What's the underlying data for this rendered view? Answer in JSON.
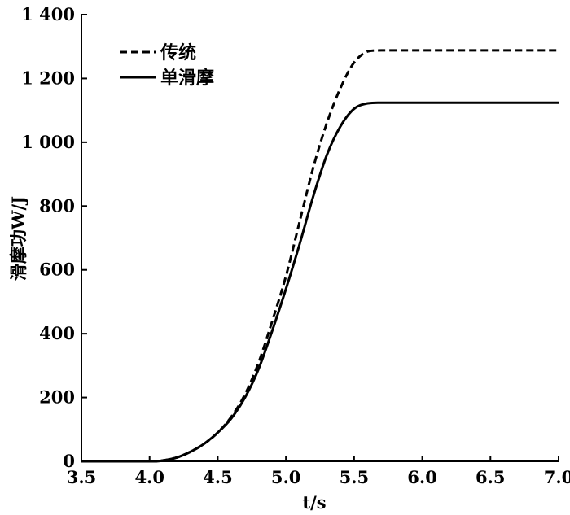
{
  "chart_data": {
    "type": "line",
    "xlabel": "t/s",
    "ylabel": "滑摩功W/J",
    "xlim": [
      3.5,
      7.0
    ],
    "ylim": [
      0,
      1400
    ],
    "xticks": [
      "3.5",
      "4.0",
      "4.5",
      "5.0",
      "5.5",
      "6.0",
      "6.5",
      "7.0"
    ],
    "yticks": [
      "0",
      "200",
      "400",
      "600",
      "800",
      "1 000",
      "1 200",
      "1 400"
    ],
    "legend_position": "top-left",
    "grid": false,
    "series": [
      {
        "name": "传统",
        "style": "dashed",
        "color": "#000000",
        "x": [
          3.5,
          4.0,
          4.1,
          4.2,
          4.3,
          4.4,
          4.5,
          4.6,
          4.7,
          4.8,
          4.9,
          5.0,
          5.1,
          5.2,
          5.3,
          5.4,
          5.5,
          5.6,
          5.7,
          6.0,
          6.5,
          7.0
        ],
        "y": [
          0,
          0,
          3,
          12,
          30,
          55,
          90,
          140,
          210,
          310,
          440,
          580,
          750,
          920,
          1060,
          1170,
          1250,
          1285,
          1288,
          1288,
          1288,
          1288
        ]
      },
      {
        "name": "单滑摩",
        "style": "solid",
        "color": "#000000",
        "x": [
          3.5,
          4.0,
          4.1,
          4.2,
          4.3,
          4.4,
          4.5,
          4.6,
          4.7,
          4.8,
          4.9,
          5.0,
          5.1,
          5.2,
          5.3,
          5.4,
          5.5,
          5.6,
          5.7,
          6.0,
          6.5,
          7.0
        ],
        "y": [
          0,
          0,
          3,
          12,
          30,
          55,
          90,
          135,
          200,
          290,
          410,
          540,
          680,
          830,
          960,
          1050,
          1105,
          1122,
          1124,
          1124,
          1124,
          1124
        ]
      }
    ]
  }
}
